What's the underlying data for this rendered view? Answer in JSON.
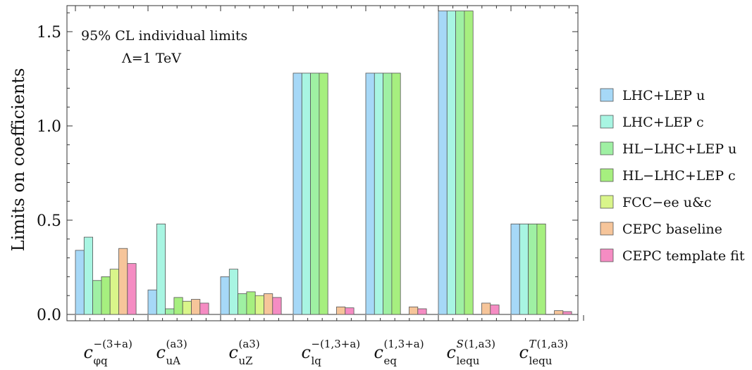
{
  "chart_data": {
    "type": "bar",
    "title": "",
    "xlabel": "",
    "ylabel": "Limits on coefficients",
    "ylim": [
      0,
      1.6
    ],
    "yticks": [
      "0.0",
      "0.5",
      "1.0",
      "1.5"
    ],
    "grid": false,
    "legend_position": "right",
    "annotation_lines": [
      "95% CL individual limits",
      "Λ=1 TeV"
    ],
    "categories": [
      {
        "main": "c",
        "sub": "φq",
        "sup": "−(3+a)",
        "sup_italic": false
      },
      {
        "main": "c",
        "sub": "uA",
        "sup": "(a3)",
        "sup_italic": false
      },
      {
        "main": "c",
        "sub": "uZ",
        "sup": "(a3)",
        "sup_italic": false
      },
      {
        "main": "c",
        "sub": "lq",
        "sup": "−(1,3+a)",
        "sup_italic": false
      },
      {
        "main": "c",
        "sub": "eq",
        "sup": "(1,3+a)",
        "sup_italic": false
      },
      {
        "main": "c",
        "sub": "lequ",
        "sup_sym": "S",
        "sup": "(1,a3)",
        "sup_italic": true
      },
      {
        "main": "c",
        "sub": "lequ",
        "sup_sym": "T",
        "sup": "(1,a3)",
        "sup_italic": true
      }
    ],
    "series": [
      {
        "name": "LHC+LEP u",
        "color": "#a6d8f7",
        "values": [
          0.34,
          0.13,
          0.2,
          1.28,
          1.28,
          1.61,
          0.48
        ]
      },
      {
        "name": "LHC+LEP c",
        "color": "#a8f5e2",
        "values": [
          0.41,
          0.48,
          0.24,
          1.28,
          1.28,
          1.61,
          0.48
        ]
      },
      {
        "name": "HL−LHC+LEP u",
        "color": "#9ff0a3",
        "values": [
          0.18,
          0.03,
          0.11,
          1.28,
          1.28,
          1.61,
          0.48
        ]
      },
      {
        "name": "HL−LHC+LEP c",
        "color": "#a6ef7f",
        "values": [
          0.2,
          0.09,
          0.12,
          1.28,
          1.28,
          1.61,
          0.48
        ]
      },
      {
        "name": "FCC−ee u&c",
        "color": "#d9f58a",
        "values": [
          0.24,
          0.07,
          0.1,
          0,
          0,
          0,
          0
        ]
      },
      {
        "name": "CEPC baseline",
        "color": "#f6c59a",
        "values": [
          0.35,
          0.08,
          0.11,
          0.04,
          0.04,
          0.06,
          0.02
        ]
      },
      {
        "name": "CEPC template fit",
        "color": "#f58cc3",
        "values": [
          0.27,
          0.06,
          0.09,
          0.035,
          0.03,
          0.05,
          0.015
        ]
      }
    ]
  }
}
